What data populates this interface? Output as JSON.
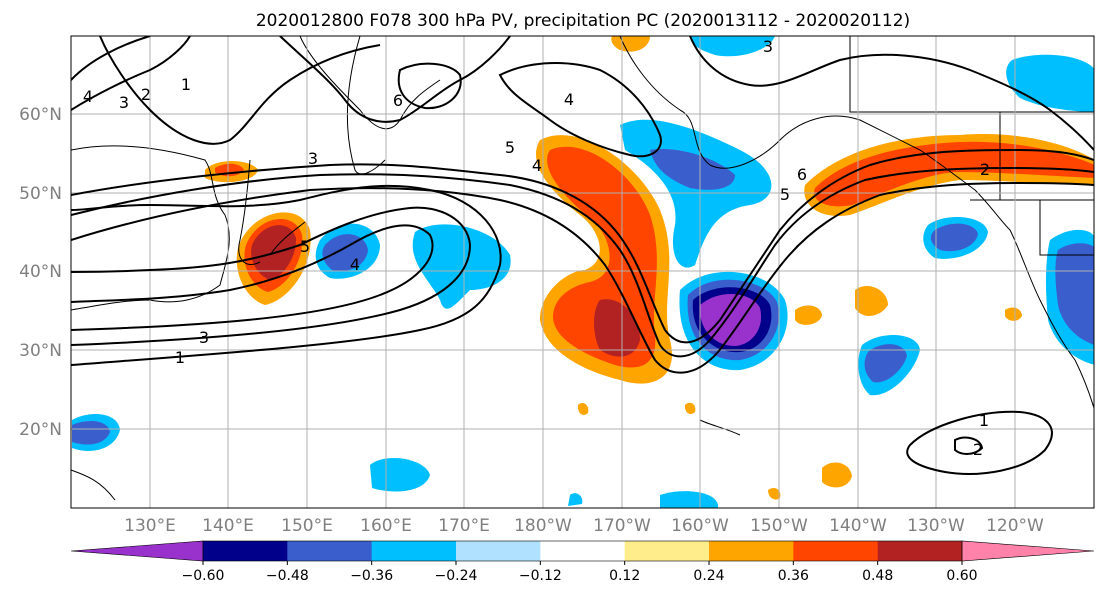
{
  "title": "2020012800 F078 300 hPa PV, precipitation PC (2020013112 - 2020020112)",
  "map": {
    "lat_labels": [
      "60°N",
      "50°N",
      "40°N",
      "30°N",
      "20°N"
    ],
    "lon_labels": [
      "130°E",
      "140°E",
      "150°E",
      "160°E",
      "170°E",
      "180°W",
      "170°W",
      "160°W",
      "150°W",
      "140°W",
      "130°W",
      "120°W"
    ],
    "pv_contour_labels": [
      "4",
      "3",
      "2",
      "1",
      "6",
      "5",
      "4",
      "6",
      "5",
      "3",
      "4",
      "5",
      "3",
      "1",
      "1",
      "2",
      "2",
      "4",
      "3"
    ]
  },
  "colorbar": {
    "colors": [
      "#9932CC",
      "#00008B",
      "#3A5FCD",
      "#00BFFF",
      "#B0E2FF",
      "#FFFFFF",
      "#FFEC8B",
      "#FFA500",
      "#FF4500",
      "#B22222",
      "#FF82AB"
    ],
    "tick_labels": [
      "−0.60",
      "−0.48",
      "−0.36",
      "−0.24",
      "−0.12",
      "0.12",
      "0.24",
      "0.36",
      "0.48",
      "0.60"
    ]
  },
  "colors": {
    "land_outline": "#000000",
    "grid": "#b0b0b0",
    "contour": "#000000"
  }
}
